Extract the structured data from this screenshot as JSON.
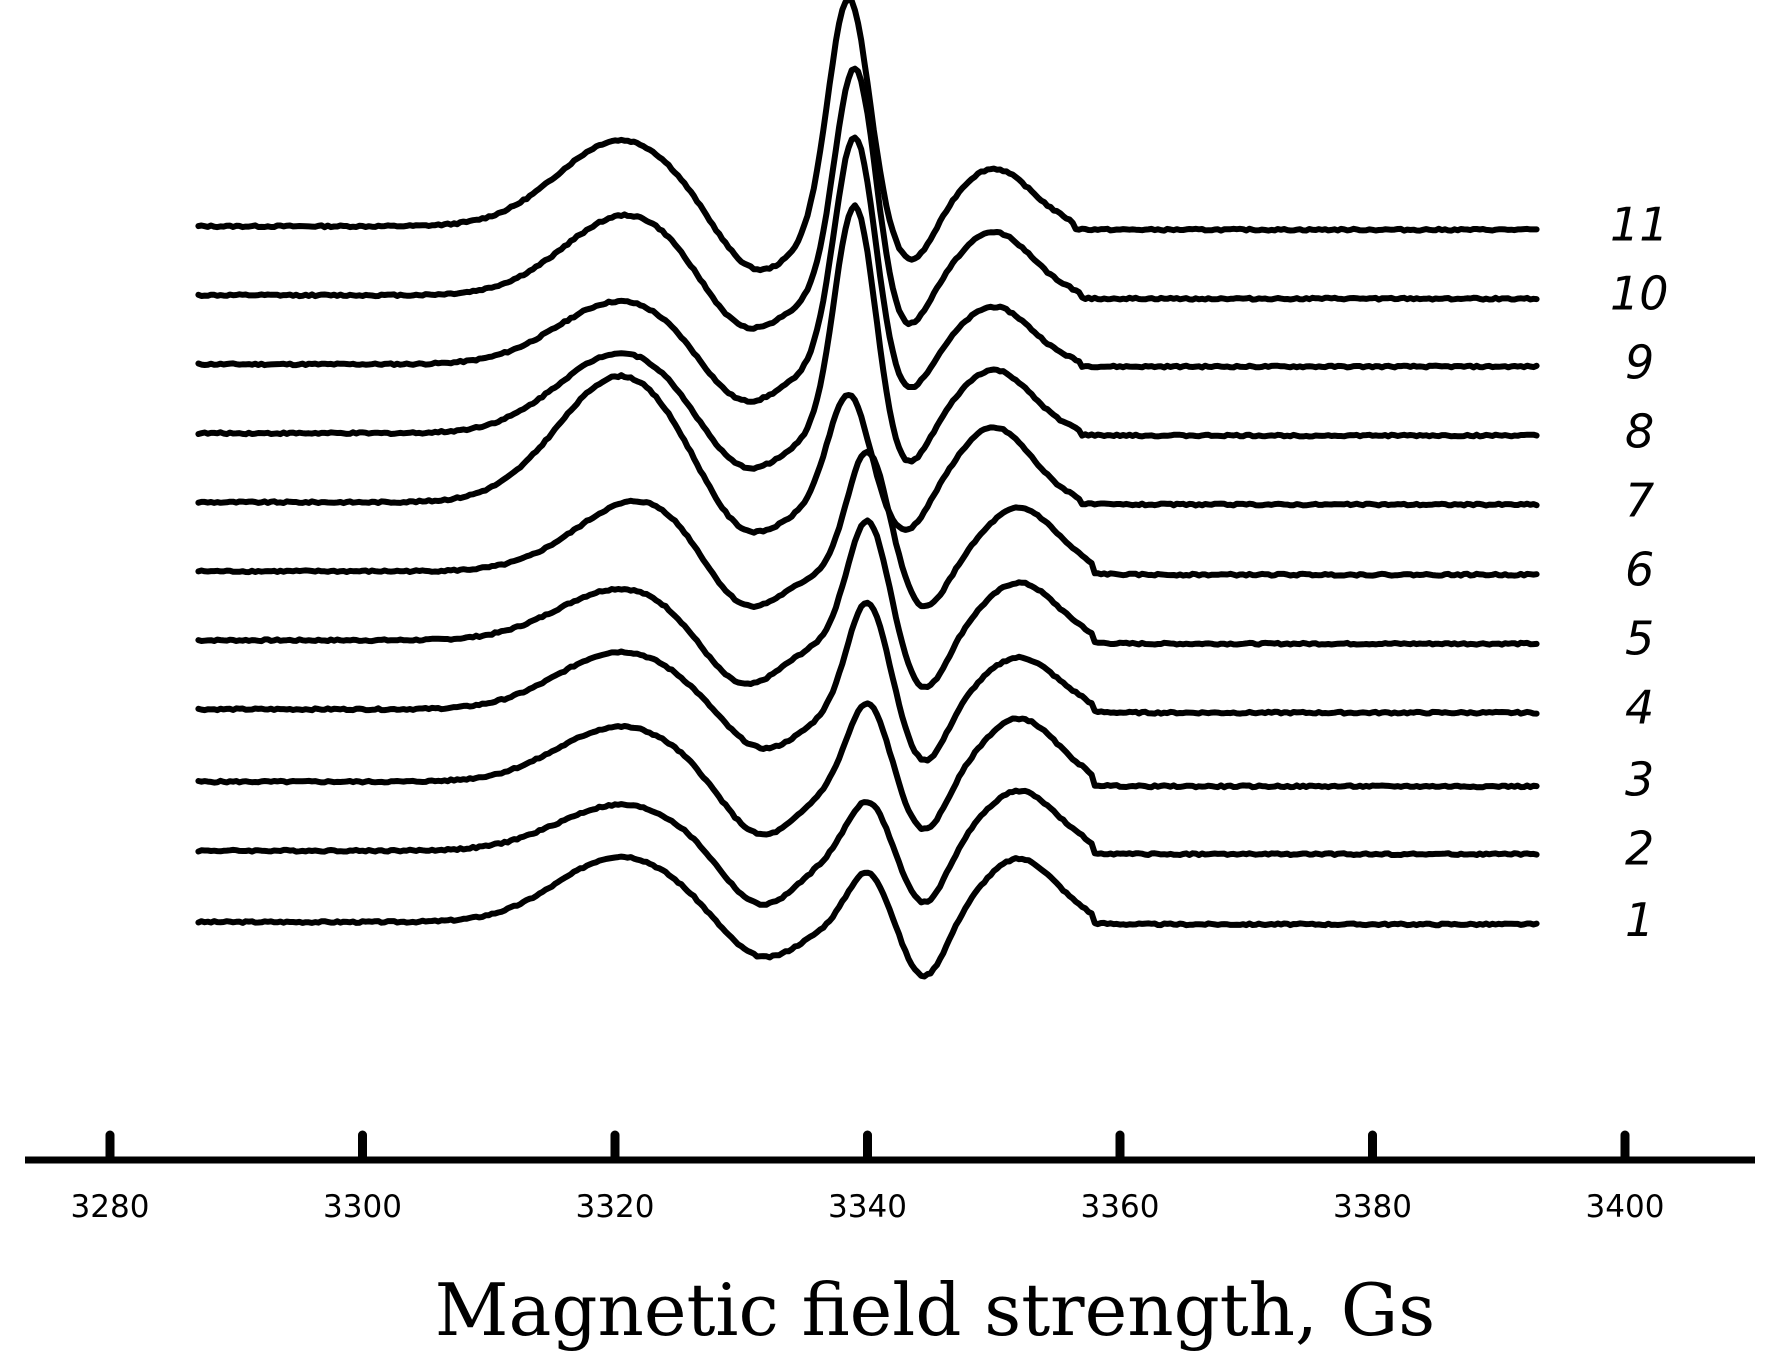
{
  "chart_data": {
    "type": "line",
    "title": "",
    "xlabel": "Magnetic field strength, Gs",
    "ylabel": "",
    "xlim": [
      3273,
      3411
    ],
    "x_ticks": [
      3280,
      3300,
      3320,
      3340,
      3360,
      3380,
      3400
    ],
    "x_tick_labels": [
      "3280",
      "3300",
      "3320",
      "3340",
      "3360",
      "3380",
      "3400"
    ],
    "x_range_data": [
      3287,
      3393
    ],
    "y_units": "relative signal amplitude (stacked offsets, arbitrary units)",
    "grid": false,
    "legend": "series numbers printed at right end of each trace",
    "line_color": "#000000",
    "series": [
      {
        "name": "1",
        "baseline": 0,
        "broad_pos": [
          3320.5,
          57
        ],
        "broad_neg": [
          3331.5,
          -35
        ],
        "narrow_pos": [
          3340.0,
          45
        ],
        "narrow_neg": [
          3344.5,
          -50
        ],
        "shoulder": [
          3352,
          55
        ],
        "step": [
          3357,
          3358,
          -2
        ]
      },
      {
        "name": "2",
        "baseline": 62,
        "broad_pos": [
          3320.5,
          40
        ],
        "broad_neg": [
          3331.5,
          -50
        ],
        "narrow_pos": [
          3340.0,
          45
        ],
        "narrow_neg": [
          3344.5,
          -48
        ],
        "shoulder": [
          3352,
          52
        ],
        "step": [
          3357,
          3358,
          -3
        ]
      },
      {
        "name": "3",
        "baseline": 122,
        "broad_pos": [
          3320.5,
          48
        ],
        "broad_neg": [
          3331.5,
          -50
        ],
        "narrow_pos": [
          3340.0,
          70
        ],
        "narrow_neg": [
          3344.5,
          -45
        ],
        "shoulder": [
          3352,
          55
        ],
        "step": [
          3357,
          3358,
          -4
        ]
      },
      {
        "name": "4",
        "baseline": 185,
        "broad_pos": [
          3320.5,
          50
        ],
        "broad_neg": [
          3331.5,
          -38
        ],
        "narrow_pos": [
          3340.0,
          95
        ],
        "narrow_neg": [
          3344.5,
          -48
        ],
        "shoulder": [
          3352,
          45
        ],
        "step": [
          3357,
          3358,
          -3
        ]
      },
      {
        "name": "5",
        "baseline": 245,
        "broad_pos": [
          3320.5,
          45
        ],
        "broad_neg": [
          3330.0,
          -45
        ],
        "narrow_pos": [
          3340.0,
          105
        ],
        "narrow_neg": [
          3344.5,
          -45
        ],
        "shoulder": [
          3352,
          50
        ],
        "step": [
          3357,
          3358,
          -3
        ]
      },
      {
        "name": "6",
        "baseline": 305,
        "broad_pos": [
          3322.0,
          62
        ],
        "broad_neg": [
          3330.0,
          -45
        ],
        "narrow_pos": [
          3340.0,
          105
        ],
        "narrow_neg": [
          3344.5,
          -35
        ],
        "shoulder": [
          3352,
          55
        ],
        "step": [
          3357,
          3358,
          -3
        ]
      },
      {
        "name": "7",
        "baseline": 365,
        "broad_pos": [
          3320.5,
          110
        ],
        "broad_neg": [
          3330.0,
          -40
        ],
        "narrow_pos": [
          3338.5,
          95
        ],
        "narrow_neg": [
          3343.0,
          -30
        ],
        "shoulder": [
          3350,
          65
        ],
        "step": [
          3356,
          3357,
          -2
        ]
      },
      {
        "name": "8",
        "baseline": 425,
        "broad_pos": [
          3320.5,
          70
        ],
        "broad_neg": [
          3330.0,
          -40
        ],
        "narrow_pos": [
          3339.0,
          200
        ],
        "narrow_neg": [
          3343.0,
          -35
        ],
        "shoulder": [
          3350,
          55
        ],
        "step": [
          3356,
          3357,
          -2
        ]
      },
      {
        "name": "9",
        "baseline": 485,
        "broad_pos": [
          3320.5,
          55
        ],
        "broad_neg": [
          3330.0,
          -40
        ],
        "narrow_pos": [
          3339.0,
          200
        ],
        "narrow_neg": [
          3343.0,
          -30
        ],
        "shoulder": [
          3350,
          50
        ],
        "step": [
          3356,
          3357,
          -2
        ]
      },
      {
        "name": "10",
        "baseline": 545,
        "broad_pos": [
          3321.0,
          70
        ],
        "broad_neg": [
          3330.0,
          -40
        ],
        "narrow_pos": [
          3339.0,
          200
        ],
        "narrow_neg": [
          3343.0,
          -35
        ],
        "shoulder": [
          3350,
          55
        ],
        "step": [
          3356,
          3357,
          -3
        ]
      },
      {
        "name": "11",
        "baseline": 605,
        "broad_pos": [
          3320.5,
          75
        ],
        "broad_neg": [
          3331.0,
          -45
        ],
        "narrow_pos": [
          3338.5,
          200
        ],
        "narrow_neg": [
          3343.5,
          -35
        ],
        "shoulder": [
          3350,
          50
        ],
        "step": [
          3355.5,
          3356.5,
          -3
        ]
      }
    ]
  }
}
